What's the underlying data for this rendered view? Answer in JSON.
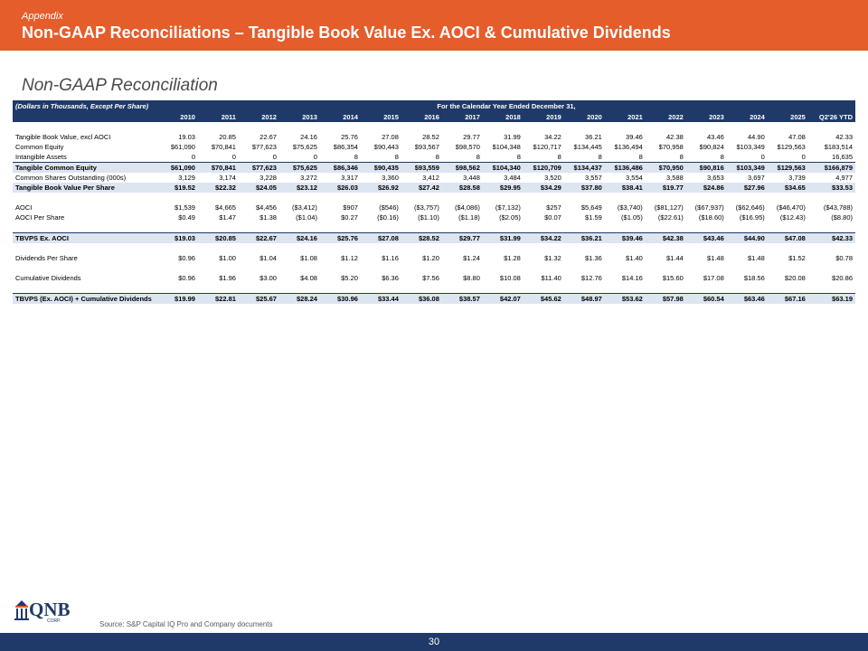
{
  "header": {
    "eyebrow": "Appendix",
    "title": "Non-GAAP Reconciliations – Tangible Book Value Ex. AOCI & Cumulative Dividends",
    "bar_color": "#e45d2b"
  },
  "section_title": "Non-GAAP Reconciliation",
  "table": {
    "units_label": "(Dollars in Thousands, Except Per Share)",
    "period_label": "For the Calendar Year Ended December 31,",
    "columns": [
      "2010",
      "2011",
      "2012",
      "2013",
      "2014",
      "2015",
      "2016",
      "2017",
      "2018",
      "2019",
      "2020",
      "2021",
      "2022",
      "2023",
      "2024",
      "2025",
      "Q2'26 YTD"
    ],
    "header_color": "#1f3a68",
    "highlight_color": "#dde5f1",
    "rows": [
      {
        "label": "Tangible Book Value, excl AOCI",
        "values": [
          "19.03",
          "20.85",
          "22.67",
          "24.16",
          "25.76",
          "27.08",
          "28.52",
          "29.77",
          "31.99",
          "34.22",
          "36.21",
          "39.46",
          "42.38",
          "43.46",
          "44.90",
          "47.08",
          "42.33"
        ]
      },
      {
        "label": "Common Equity",
        "values": [
          "$61,090",
          "$70,841",
          "$77,623",
          "$75,625",
          "$86,354",
          "$90,443",
          "$93,567",
          "$98,570",
          "$104,348",
          "$120,717",
          "$134,445",
          "$136,494",
          "$70,958",
          "$90,824",
          "$103,349",
          "$129,563",
          "$183,514"
        ]
      },
      {
        "label": "Intangible Assets",
        "values": [
          "0",
          "0",
          "0",
          "0",
          "8",
          "8",
          "8",
          "8",
          "8",
          "8",
          "8",
          "8",
          "8",
          "8",
          "0",
          "0",
          "16,635"
        ]
      },
      {
        "label": "Tangible Common Equity",
        "values": [
          "$61,090",
          "$70,841",
          "$77,623",
          "$75,625",
          "$86,346",
          "$90,435",
          "$93,559",
          "$98,562",
          "$104,340",
          "$120,709",
          "$134,437",
          "$136,486",
          "$70,950",
          "$90,816",
          "$103,349",
          "$129,563",
          "$166,879"
        ]
      },
      {
        "label": "Common Shares Outstanding (000s)",
        "values": [
          "3,129",
          "3,174",
          "3,228",
          "3,272",
          "3,317",
          "3,360",
          "3,412",
          "3,448",
          "3,484",
          "3,520",
          "3,557",
          "3,554",
          "3,588",
          "3,653",
          "3,697",
          "3,739",
          "4,977"
        ]
      },
      {
        "label": "Tangible Book Value Per Share",
        "values": [
          "$19.52",
          "$22.32",
          "$24.05",
          "$23.12",
          "$26.03",
          "$26.92",
          "$27.42",
          "$28.58",
          "$29.95",
          "$34.29",
          "$37.80",
          "$38.41",
          "$19.77",
          "$24.86",
          "$27.96",
          "$34.65",
          "$33.53"
        ]
      },
      {
        "label": "AOCI",
        "values": [
          "$1,539",
          "$4,665",
          "$4,456",
          "($3,412)",
          "$907",
          "($546)",
          "($3,757)",
          "($4,086)",
          "($7,132)",
          "$257",
          "$5,649",
          "($3,740)",
          "($81,127)",
          "($67,937)",
          "($62,646)",
          "($46,470)",
          "($43,788)"
        ]
      },
      {
        "label": "AOCI Per Share",
        "values": [
          "$0.49",
          "$1.47",
          "$1.38",
          "($1.04)",
          "$0.27",
          "($0.16)",
          "($1.10)",
          "($1.18)",
          "($2.05)",
          "$0.07",
          "$1.59",
          "($1.05)",
          "($22.61)",
          "($18.60)",
          "($16.95)",
          "($12.43)",
          "($8.80)"
        ]
      },
      {
        "label": "TBVPS Ex. AOCI",
        "values": [
          "$19.03",
          "$20.85",
          "$22.67",
          "$24.16",
          "$25.76",
          "$27.08",
          "$28.52",
          "$29.77",
          "$31.99",
          "$34.22",
          "$36.21",
          "$39.46",
          "$42.38",
          "$43.46",
          "$44.90",
          "$47.08",
          "$42.33"
        ]
      },
      {
        "label": "Dividends Per Share",
        "values": [
          "$0.96",
          "$1.00",
          "$1.04",
          "$1.08",
          "$1.12",
          "$1.16",
          "$1.20",
          "$1.24",
          "$1.28",
          "$1.32",
          "$1.36",
          "$1.40",
          "$1.44",
          "$1.48",
          "$1.48",
          "$1.52",
          "$0.78"
        ]
      },
      {
        "label": "Cumulative Dividends",
        "values": [
          "$0.96",
          "$1.96",
          "$3.00",
          "$4.08",
          "$5.20",
          "$6.36",
          "$7.56",
          "$8.80",
          "$10.08",
          "$11.40",
          "$12.76",
          "$14.16",
          "$15.60",
          "$17.08",
          "$18.56",
          "$20.08",
          "$20.86"
        ]
      },
      {
        "label": "TBVPS (Ex. AOCI) + Cumulative Dividends",
        "values": [
          "$19.99",
          "$22.81",
          "$25.67",
          "$28.24",
          "$30.96",
          "$33.44",
          "$36.08",
          "$38.57",
          "$42.07",
          "$45.62",
          "$48.97",
          "$53.62",
          "$57.98",
          "$60.54",
          "$63.46",
          "$67.16",
          "$63.19"
        ]
      }
    ]
  },
  "logo": {
    "name": "QNB",
    "sub": "CORP.",
    "icon": "qnb-building-icon"
  },
  "source": "Source: S&P Capital IQ Pro and Company documents",
  "page_number": "30"
}
